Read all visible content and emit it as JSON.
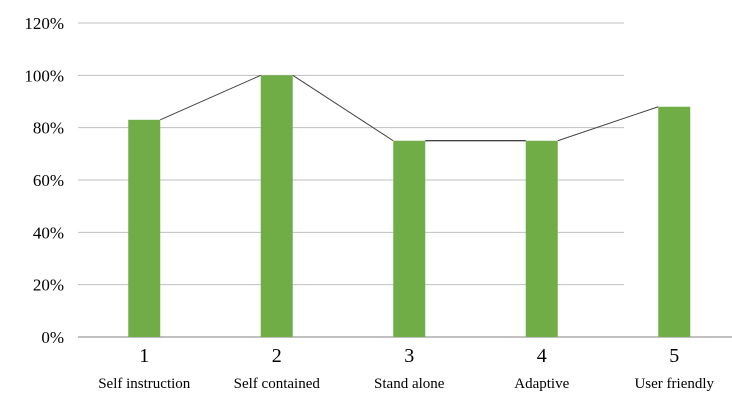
{
  "chart_data": {
    "type": "bar",
    "title": "",
    "xlabel": "",
    "ylabel": "",
    "y_axis_tick_labels": [
      "0%",
      "20%",
      "40%",
      "60%",
      "80%",
      "100%",
      "120%"
    ],
    "y_ticks": [
      0,
      20,
      40,
      60,
      80,
      100,
      120
    ],
    "ylim": [
      0,
      120
    ],
    "grid": true,
    "categories": [
      {
        "number": "1",
        "name": "Self instruction"
      },
      {
        "number": "2",
        "name": "Self contained"
      },
      {
        "number": "3",
        "name": "Stand alone"
      },
      {
        "number": "4",
        "name": "Adaptive"
      },
      {
        "number": "5",
        "name": "User friendly"
      }
    ],
    "values": [
      83,
      100,
      75,
      75,
      88
    ],
    "overlay_line": {
      "type": "line",
      "values": [
        83,
        100,
        75,
        75,
        88
      ]
    },
    "colors": {
      "bar": "#70ad47",
      "line": "#404040",
      "grid": "#bfbfbf",
      "axis": "#808080"
    }
  }
}
